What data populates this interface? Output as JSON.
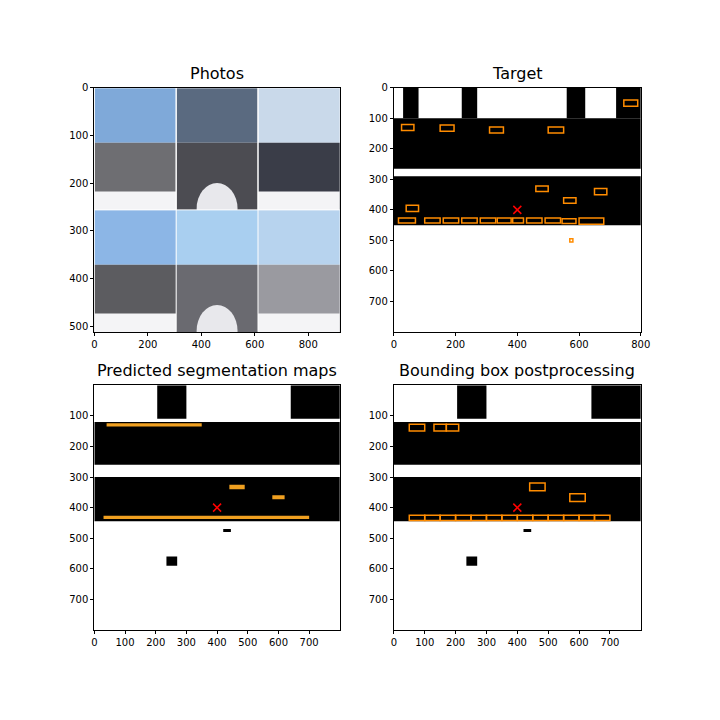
{
  "chart_data": [
    {
      "type": "image",
      "title": "Photos",
      "xlim": [
        0,
        918
      ],
      "ylim": [
        512,
        0
      ],
      "xticks": [
        0,
        200,
        400,
        600,
        800
      ],
      "yticks": [
        0,
        100,
        200,
        300,
        400,
        500
      ],
      "tiles": {
        "rows": 2,
        "columns": 3
      }
    },
    {
      "type": "image",
      "title": "Target",
      "xlim": [
        0,
        800
      ],
      "ylim": [
        800,
        0
      ],
      "xticks": [
        0,
        200,
        400,
        600,
        800
      ],
      "yticks": [
        0,
        100,
        200,
        300,
        400,
        500,
        600,
        700
      ],
      "regions": [
        [
          0,
          100,
          800,
          265
        ],
        [
          30,
          0,
          80,
          100
        ],
        [
          220,
          0,
          270,
          100
        ],
        [
          560,
          0,
          620,
          100
        ],
        [
          720,
          0,
          800,
          100
        ],
        [
          0,
          290,
          800,
          450
        ]
      ],
      "color": "#ff8c00",
      "boxes": [
        [
          25,
          120,
          65,
          140
        ],
        [
          150,
          122,
          195,
          142
        ],
        [
          310,
          128,
          355,
          148
        ],
        [
          500,
          128,
          550,
          148
        ],
        [
          745,
          40,
          790,
          60
        ],
        [
          460,
          322,
          500,
          340
        ],
        [
          650,
          330,
          690,
          350
        ],
        [
          550,
          360,
          590,
          378
        ],
        [
          40,
          385,
          80,
          405
        ],
        [
          15,
          427,
          70,
          443
        ],
        [
          100,
          427,
          150,
          443
        ],
        [
          160,
          427,
          210,
          443
        ],
        [
          220,
          427,
          270,
          443
        ],
        [
          280,
          427,
          330,
          443
        ],
        [
          335,
          427,
          380,
          443
        ],
        [
          385,
          427,
          420,
          443
        ],
        [
          430,
          427,
          480,
          443
        ],
        [
          490,
          427,
          540,
          443
        ],
        [
          545,
          429,
          590,
          445
        ],
        [
          600,
          427,
          680,
          447
        ],
        [
          570,
          495,
          580,
          505
        ]
      ],
      "point": {
        "x": 400,
        "y": 400,
        "color": "red",
        "marker": "x"
      }
    },
    {
      "type": "image",
      "title": "Predicted segmentation maps",
      "xlim": [
        0,
        800
      ],
      "ylim": [
        800,
        0
      ],
      "xticks": [
        0,
        100,
        200,
        300,
        400,
        500,
        600,
        700
      ],
      "yticks": [
        100,
        200,
        300,
        400,
        500,
        600,
        700
      ],
      "regions": [
        [
          0,
          120,
          800,
          260
        ],
        [
          205,
          0,
          300,
          110
        ],
        [
          640,
          0,
          800,
          110
        ],
        [
          0,
          300,
          800,
          445
        ],
        [
          235,
          560,
          270,
          590
        ],
        [
          420,
          470,
          445,
          480
        ]
      ],
      "color": "#f0a020",
      "segments": [
        [
          40,
          124,
          350,
          135
        ],
        [
          440,
          325,
          490,
          340
        ],
        [
          580,
          360,
          620,
          373
        ],
        [
          30,
          427,
          700,
          437
        ]
      ],
      "point": {
        "x": 400,
        "y": 400,
        "color": "red",
        "marker": "x"
      }
    },
    {
      "type": "image",
      "title": "Bounding box postprocessing",
      "xlim": [
        0,
        800
      ],
      "ylim": [
        800,
        0
      ],
      "xticks": [
        0,
        100,
        200,
        300,
        400,
        500,
        600,
        700
      ],
      "yticks": [
        100,
        200,
        300,
        400,
        500,
        600,
        700
      ],
      "regions": [
        [
          0,
          120,
          800,
          260
        ],
        [
          205,
          0,
          300,
          110
        ],
        [
          640,
          0,
          800,
          110
        ],
        [
          0,
          300,
          800,
          445
        ],
        [
          235,
          560,
          270,
          590
        ],
        [
          420,
          470,
          445,
          480
        ]
      ],
      "color": "#ff8c00",
      "boxes": [
        [
          50,
          128,
          100,
          150
        ],
        [
          130,
          128,
          170,
          150
        ],
        [
          170,
          128,
          210,
          150
        ],
        [
          440,
          320,
          490,
          345
        ],
        [
          570,
          355,
          620,
          380
        ],
        [
          50,
          425,
          100,
          442
        ],
        [
          100,
          425,
          150,
          442
        ],
        [
          150,
          425,
          200,
          442
        ],
        [
          200,
          425,
          250,
          442
        ],
        [
          250,
          425,
          300,
          442
        ],
        [
          300,
          425,
          350,
          442
        ],
        [
          350,
          425,
          400,
          442
        ],
        [
          400,
          425,
          450,
          442
        ],
        [
          450,
          425,
          500,
          442
        ],
        [
          500,
          425,
          550,
          442
        ],
        [
          550,
          425,
          600,
          442
        ],
        [
          600,
          425,
          650,
          442
        ],
        [
          650,
          425,
          700,
          442
        ]
      ],
      "point": {
        "x": 400,
        "y": 400,
        "color": "red",
        "marker": "x"
      }
    }
  ]
}
